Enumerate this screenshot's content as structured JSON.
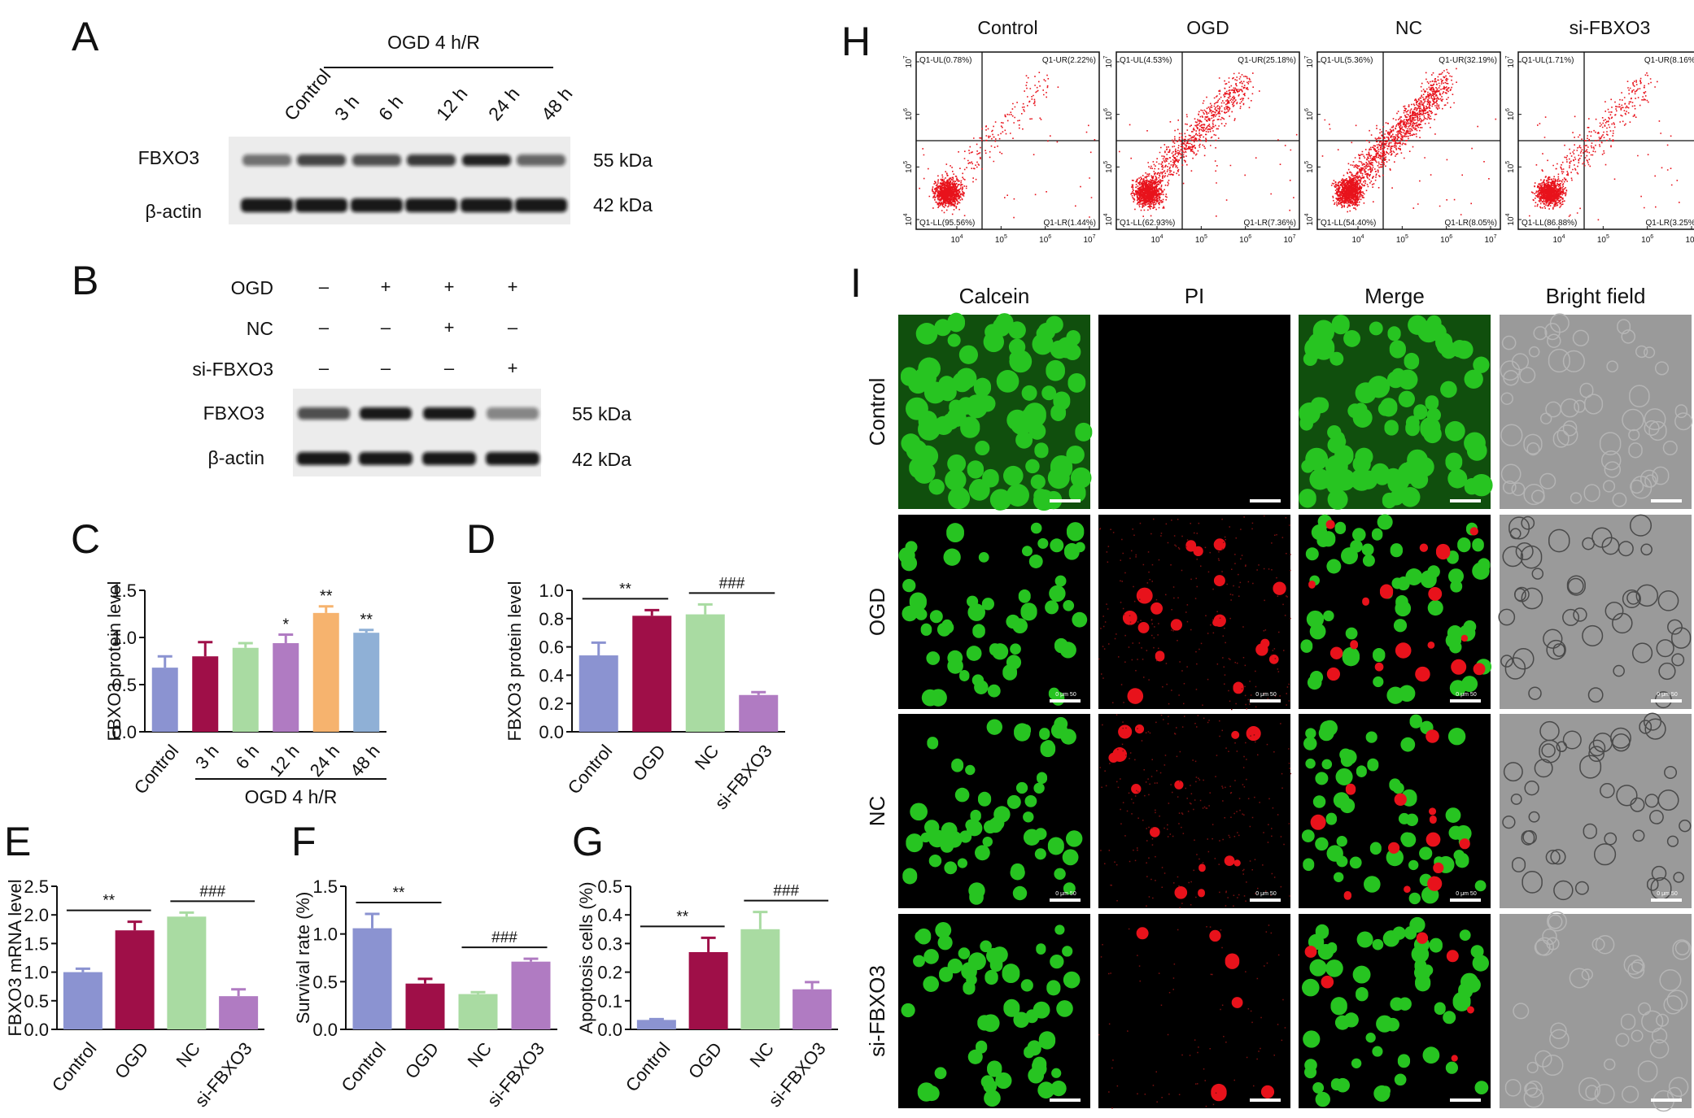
{
  "colors": {
    "control": "#8b93d1",
    "t3": "#9f0f48",
    "t6": "#a9dba2",
    "t12": "#b07bc2",
    "t24": "#f6b36e",
    "t48": "#8fb0d6",
    "ogd": "#9f0f48",
    "nc": "#a9dba2",
    "si": "#b07bc2",
    "green": "#27c421",
    "red": "#e8121b",
    "gray": "#8e8e8e"
  },
  "panels": {
    "A": {
      "letter": "A",
      "header": "OGD 4 h/R",
      "lanes": [
        "Control",
        "3 h",
        "6 h",
        "12 h",
        "24 h",
        "48 h"
      ],
      "bands": [
        "FBXO3",
        "β-actin"
      ],
      "sizes": [
        "55 kDa",
        "42 kDa"
      ]
    },
    "B": {
      "letter": "B",
      "rows": [
        {
          "label": "OGD",
          "signs": [
            "–",
            "+",
            "+",
            "+"
          ]
        },
        {
          "label": "NC",
          "signs": [
            "–",
            "–",
            "+",
            "–"
          ]
        },
        {
          "label": "si-FBXO3",
          "signs": [
            "–",
            "–",
            "–",
            "+"
          ]
        }
      ],
      "bands": [
        "FBXO3",
        "β-actin"
      ],
      "sizes": [
        "55 kDa",
        "42 kDa"
      ]
    },
    "H": {
      "letter": "H",
      "plots": [
        {
          "title": "Control",
          "ul": "Q1-UL(0.78%)",
          "ur": "Q1-UR(2.22%)",
          "ll": "Q1-LL(95.56%)",
          "lr": "Q1-LR(1.44%)",
          "density": 1
        },
        {
          "title": "OGD",
          "ul": "Q1-UL(4.53%)",
          "ur": "Q1-UR(25.18%)",
          "ll": "Q1-LL(62.93%)",
          "lr": "Q1-LR(7.36%)",
          "density": 2
        },
        {
          "title": "NC",
          "ul": "Q1-UL(5.36%)",
          "ur": "Q1-UR(32.19%)",
          "ll": "Q1-LL(54.40%)",
          "lr": "Q1-LR(8.05%)",
          "density": 3
        },
        {
          "title": "si-FBXO3",
          "ul": "Q1-UL(1.71%)",
          "ur": "Q1-UR(8.16%)",
          "ll": "Q1-LL(86.88%)",
          "lr": "Q1-LR(3.25%)",
          "density": 1
        }
      ],
      "yticks": [
        "10",
        "10",
        "10",
        "10"
      ],
      "yexp": [
        "7",
        "6",
        "5",
        "4"
      ],
      "xticks": [
        "10",
        "10",
        "10",
        "10"
      ],
      "xexp": [
        "4",
        "5",
        "6",
        "7"
      ]
    },
    "I": {
      "letter": "I",
      "columns": [
        "Calcein",
        "PI",
        "Merge",
        "Bright field"
      ],
      "rows": [
        "Control",
        "OGD",
        "NC",
        "si-FBXO3"
      ],
      "scale_text": "0    μm    50"
    }
  },
  "chart_data": [
    {
      "panel": "C",
      "type": "bar",
      "categories": [
        "Control",
        "3 h",
        "6 h",
        "12 h",
        "24 h",
        "48 h"
      ],
      "values": [
        0.68,
        0.8,
        0.89,
        0.94,
        1.26,
        1.05
      ],
      "errors": [
        0.12,
        0.15,
        0.05,
        0.09,
        0.07,
        0.03
      ],
      "sig": [
        "",
        "",
        "",
        "*",
        "**",
        "**"
      ],
      "ylabel": "FBXO3 protein level",
      "ylim": [
        0,
        1.5
      ],
      "yticks": [
        "0.0",
        "0.5",
        "1.0",
        "1.5"
      ],
      "group_label": "OGD 4 h/R"
    },
    {
      "panel": "D",
      "type": "bar",
      "categories": [
        "Control",
        "OGD",
        "NC",
        "si-FBXO3"
      ],
      "values": [
        0.54,
        0.82,
        0.83,
        0.26
      ],
      "errors": [
        0.09,
        0.04,
        0.07,
        0.02
      ],
      "ylabel": "FBXO3 protein level",
      "ylim": [
        0,
        1.0
      ],
      "yticks": [
        "0.0",
        "0.2",
        "0.4",
        "0.6",
        "0.8",
        "1.0"
      ],
      "brackets": [
        {
          "from": 0,
          "to": 1,
          "label": "**"
        },
        {
          "from": 2,
          "to": 3,
          "label": "###"
        }
      ]
    },
    {
      "panel": "E",
      "type": "bar",
      "categories": [
        "Control",
        "OGD",
        "NC",
        "si-FBXO3"
      ],
      "values": [
        1.0,
        1.73,
        1.97,
        0.58
      ],
      "errors": [
        0.06,
        0.15,
        0.07,
        0.12
      ],
      "ylabel": "FBXO3 mRNA level",
      "ylim": [
        0,
        2.5
      ],
      "yticks": [
        "0.0",
        "0.5",
        "1.0",
        "1.5",
        "2.0",
        "2.5"
      ],
      "brackets": [
        {
          "from": 0,
          "to": 1,
          "label": "**"
        },
        {
          "from": 2,
          "to": 3,
          "label": "###"
        }
      ]
    },
    {
      "panel": "F",
      "type": "bar",
      "categories": [
        "Control",
        "OGD",
        "NC",
        "si-FBXO3"
      ],
      "values": [
        1.06,
        0.48,
        0.37,
        0.71
      ],
      "errors": [
        0.15,
        0.05,
        0.02,
        0.03
      ],
      "ylabel": "Survival rate (%)",
      "ylim": [
        0,
        1.5
      ],
      "yticks": [
        "0.0",
        "0.5",
        "1.0",
        "1.5"
      ],
      "brackets": [
        {
          "from": 0,
          "to": 1,
          "label": "**"
        },
        {
          "from": 2,
          "to": 3,
          "label": "###"
        }
      ]
    },
    {
      "panel": "G",
      "type": "bar",
      "categories": [
        "Control",
        "OGD",
        "NC",
        "si-FBXO3"
      ],
      "values": [
        0.033,
        0.27,
        0.35,
        0.14
      ],
      "errors": [
        0.003,
        0.05,
        0.06,
        0.025
      ],
      "ylabel": "Apoptosis cells (%)",
      "ylim": [
        0,
        0.5
      ],
      "yticks": [
        "0.0",
        "0.1",
        "0.2",
        "0.3",
        "0.4",
        "0.5"
      ],
      "brackets": [
        {
          "from": 0,
          "to": 1,
          "label": "**"
        },
        {
          "from": 2,
          "to": 3,
          "label": "###"
        }
      ]
    }
  ]
}
